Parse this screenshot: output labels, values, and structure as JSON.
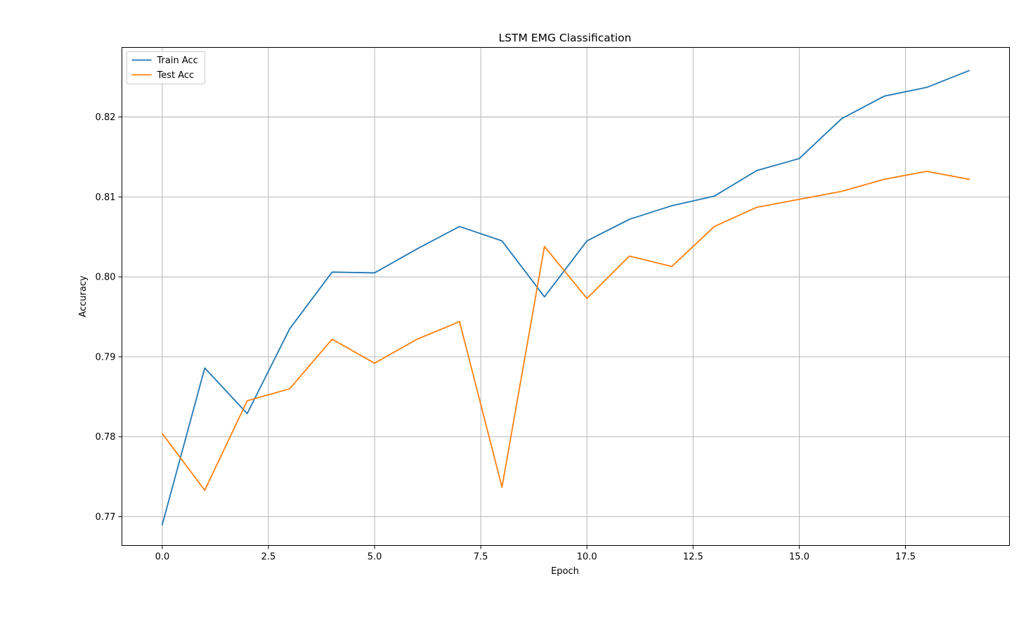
{
  "chart_data": {
    "type": "line",
    "title": "LSTM EMG Classification",
    "xlabel": "Epoch",
    "ylabel": "Accuracy",
    "x": [
      0,
      1,
      2,
      3,
      4,
      5,
      6,
      7,
      8,
      9,
      10,
      11,
      12,
      13,
      14,
      15,
      16,
      17,
      18,
      19
    ],
    "xlim": [
      -0.95,
      19.95
    ],
    "ylim": [
      0.7664,
      0.8287
    ],
    "xticks": [
      0.0,
      2.5,
      5.0,
      7.5,
      10.0,
      12.5,
      15.0,
      17.5
    ],
    "xtick_labels": [
      "0.0",
      "2.5",
      "5.0",
      "7.5",
      "10.0",
      "12.5",
      "15.0",
      "17.5"
    ],
    "yticks": [
      0.77,
      0.78,
      0.79,
      0.8,
      0.81,
      0.82
    ],
    "ytick_labels": [
      "0.77",
      "0.78",
      "0.79",
      "0.80",
      "0.81",
      "0.82"
    ],
    "grid": true,
    "legend_position": "upper-left",
    "series": [
      {
        "name": "Train Acc",
        "color": "#1f77b4",
        "values": [
          0.769,
          0.7886,
          0.7829,
          0.7935,
          0.8006,
          0.8005,
          0.8035,
          0.8063,
          0.8045,
          0.7975,
          0.8045,
          0.8072,
          0.8089,
          0.8101,
          0.8133,
          0.8148,
          0.8198,
          0.8226,
          0.8237,
          0.8258
        ]
      },
      {
        "name": "Test Acc",
        "color": "#ff7f0e",
        "values": [
          0.7804,
          0.7733,
          0.7845,
          0.786,
          0.7922,
          0.7892,
          0.7922,
          0.7944,
          0.7737,
          0.8038,
          0.7973,
          0.8026,
          0.8013,
          0.8063,
          0.8087,
          0.8097,
          0.8107,
          0.8122,
          0.8132,
          0.8122
        ]
      }
    ]
  }
}
